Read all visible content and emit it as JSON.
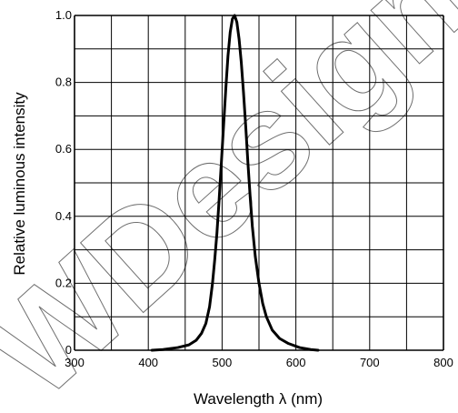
{
  "chart_data": {
    "type": "line",
    "title": "",
    "xlabel": "Wavelength λ (nm)",
    "ylabel": "Relative luminous intensity",
    "xlim": [
      300,
      800
    ],
    "ylim": [
      0,
      1.0
    ],
    "x_ticks": [
      "300",
      "400",
      "500",
      "600",
      "700",
      "800"
    ],
    "y_ticks": [
      "0",
      "0.2",
      "0.4",
      "0.6",
      "0.8",
      "1.0"
    ],
    "grid": true,
    "series": [
      {
        "color": "#000000",
        "x": [
          405,
          420,
          440,
          455,
          465,
          472,
          478,
          483,
          487,
          490,
          493,
          496,
          499,
          502,
          505,
          508,
          511,
          514,
          517,
          520,
          523,
          526,
          529,
          532,
          535,
          538,
          541,
          545,
          550,
          555,
          560,
          568,
          578,
          590,
          605,
          620,
          630
        ],
        "y": [
          0.0,
          0.002,
          0.008,
          0.016,
          0.03,
          0.05,
          0.08,
          0.13,
          0.2,
          0.27,
          0.35,
          0.45,
          0.56,
          0.67,
          0.78,
          0.88,
          0.95,
          0.99,
          1.0,
          0.98,
          0.93,
          0.86,
          0.77,
          0.67,
          0.56,
          0.46,
          0.37,
          0.28,
          0.2,
          0.14,
          0.1,
          0.06,
          0.035,
          0.02,
          0.008,
          0.002,
          0.0
        ]
      }
    ]
  },
  "watermark": {
    "text": "WDesign",
    "color": "#6f6f6f"
  }
}
